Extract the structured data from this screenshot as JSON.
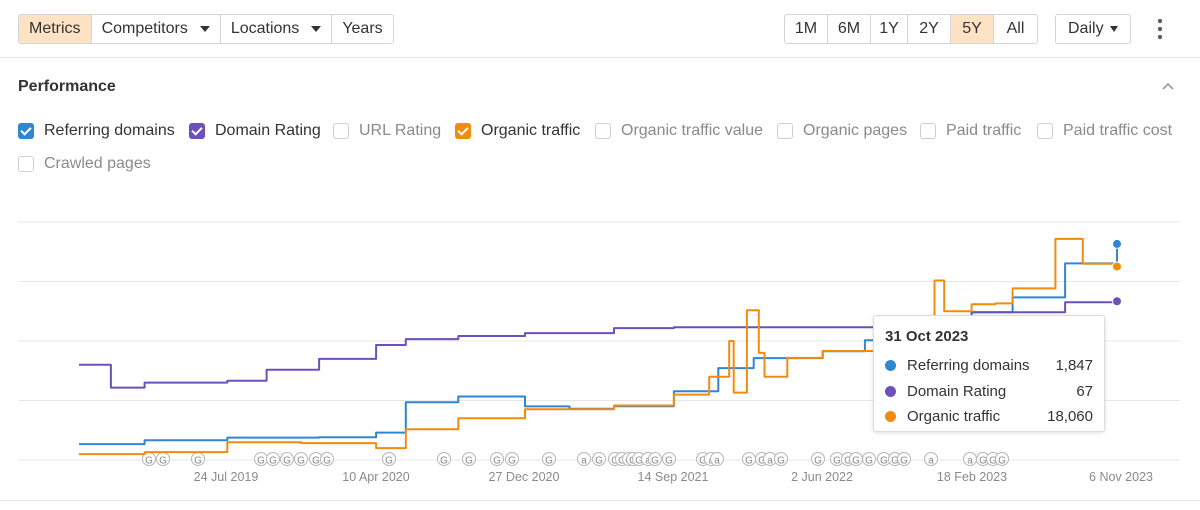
{
  "toolbar": {
    "tabs": [
      {
        "label": "Metrics",
        "active": true,
        "dropdown": false
      },
      {
        "label": "Competitors",
        "active": false,
        "dropdown": true
      },
      {
        "label": "Locations",
        "active": false,
        "dropdown": true
      },
      {
        "label": "Years",
        "active": false,
        "dropdown": false
      }
    ],
    "ranges": [
      {
        "label": "1M",
        "active": false
      },
      {
        "label": "6M",
        "active": false
      },
      {
        "label": "1Y",
        "active": false
      },
      {
        "label": "2Y",
        "active": false
      },
      {
        "label": "5Y",
        "active": true
      },
      {
        "label": "All",
        "active": false
      }
    ],
    "interval": "Daily",
    "more_icon": "kebab-menu-icon"
  },
  "panel": {
    "title": "Performance",
    "collapse_icon": "chevron-up-icon"
  },
  "legend": [
    {
      "label": "Referring domains",
      "checked": true,
      "color": "#2f86d4"
    },
    {
      "label": "Domain Rating",
      "checked": true,
      "color": "#6b51b9"
    },
    {
      "label": "URL Rating",
      "checked": false
    },
    {
      "label": "Organic traffic",
      "checked": true,
      "color": "#f28c0f"
    },
    {
      "label": "Organic traffic value",
      "checked": false
    },
    {
      "label": "Organic pages",
      "checked": false
    },
    {
      "label": "Paid traffic",
      "checked": false
    },
    {
      "label": "Paid traffic cost",
      "checked": false
    },
    {
      "label": "Crawled pages",
      "checked": false
    }
  ],
  "tooltip": {
    "date": "31 Oct 2023",
    "rows": [
      {
        "name": "Referring domains",
        "value": "1,847",
        "color": "#2f86d4"
      },
      {
        "name": "Domain Rating",
        "value": "67",
        "color": "#6b51b9"
      },
      {
        "name": "Organic traffic",
        "value": "18,060",
        "color": "#f28c0f"
      }
    ]
  },
  "chart_data": {
    "type": "line",
    "x_tick_labels": [
      "24 Jul 2019",
      "10 Apr 2020",
      "27 Dec 2020",
      "14 Sep 2021",
      "2 Jun 2022",
      "18 Feb 2023",
      "6 Nov 2023"
    ],
    "grid": true,
    "y_axis_labels_shown": false,
    "annotation_markers": [
      "G",
      "G",
      "G",
      "G",
      "G",
      "G",
      "G",
      "G",
      "G",
      "G",
      "G",
      "G",
      "G",
      "G",
      "G",
      "a",
      "G",
      "G",
      "G",
      "G",
      "G",
      "G",
      "a",
      "G",
      "G",
      "G",
      "a",
      "a",
      "G",
      "G",
      "a",
      "G",
      "G",
      "G",
      "G",
      "G",
      "G",
      "G",
      "G",
      "G",
      "a",
      "a",
      "G",
      "G",
      "G"
    ],
    "series": [
      {
        "name": "Referring domains",
        "color": "#2f86d4",
        "points": [
          [
            "2018-11-06",
            6.7
          ],
          [
            "2019-03-01",
            8.3
          ],
          [
            "2019-07-24",
            9.4
          ],
          [
            "2020-01-01",
            9.6
          ],
          [
            "2020-04-10",
            11.5
          ],
          [
            "2020-06-01",
            24.3
          ],
          [
            "2020-09-01",
            26.7
          ],
          [
            "2020-12-27",
            22.5
          ],
          [
            "2021-03-15",
            21.5
          ],
          [
            "2021-06-01",
            22.6
          ],
          [
            "2021-09-14",
            28.9
          ],
          [
            "2021-12-01",
            38.6
          ],
          [
            "2022-02-01",
            42.8
          ],
          [
            "2022-06-02",
            45.7
          ],
          [
            "2022-08-15",
            50.3
          ],
          [
            "2022-11-01",
            57.5
          ],
          [
            "2023-02-18",
            62.1
          ],
          [
            "2023-05-01",
            68.3
          ],
          [
            "2023-08-01",
            82.6
          ],
          [
            "2023-10-31",
            90.8
          ]
        ]
      },
      {
        "name": "Domain Rating",
        "color": "#6b51b9",
        "points": [
          [
            "2018-11-06",
            40.0
          ],
          [
            "2019-01-01",
            30.4
          ],
          [
            "2019-03-01",
            32.5
          ],
          [
            "2019-07-24",
            33.3
          ],
          [
            "2019-10-01",
            37.9
          ],
          [
            "2020-01-01",
            42.5
          ],
          [
            "2020-04-10",
            48.3
          ],
          [
            "2020-06-01",
            50.8
          ],
          [
            "2020-09-01",
            52.1
          ],
          [
            "2020-12-27",
            53.3
          ],
          [
            "2021-06-01",
            55.4
          ],
          [
            "2021-09-14",
            55.8
          ],
          [
            "2022-06-02",
            55.8
          ],
          [
            "2022-09-01",
            57.1
          ],
          [
            "2022-11-01",
            60.0
          ],
          [
            "2023-02-18",
            62.1
          ],
          [
            "2023-05-01",
            62.1
          ],
          [
            "2023-08-01",
            66.3
          ],
          [
            "2023-10-31",
            66.7
          ]
        ]
      },
      {
        "name": "Organic traffic",
        "color": "#f28c0f",
        "points": [
          [
            "2018-11-06",
            2.5
          ],
          [
            "2019-03-01",
            3.3
          ],
          [
            "2019-07-24",
            7.5
          ],
          [
            "2019-12-01",
            7.1
          ],
          [
            "2020-04-10",
            5.0
          ],
          [
            "2020-06-01",
            12.9
          ],
          [
            "2020-09-01",
            17.5
          ],
          [
            "2020-12-27",
            21.3
          ],
          [
            "2021-03-15",
            21.3
          ],
          [
            "2021-06-01",
            22.9
          ],
          [
            "2021-09-14",
            27.5
          ],
          [
            "2021-11-15",
            35.0
          ],
          [
            "2021-12-20",
            50.0
          ],
          [
            "2021-12-28",
            28.3
          ],
          [
            "2022-01-20",
            62.9
          ],
          [
            "2022-02-10",
            45.0
          ],
          [
            "2022-02-20",
            35.0
          ],
          [
            "2022-04-01",
            42.9
          ],
          [
            "2022-06-02",
            45.8
          ],
          [
            "2022-09-01",
            47.9
          ],
          [
            "2022-11-01",
            57.1
          ],
          [
            "2022-12-15",
            75.4
          ],
          [
            "2023-01-01",
            62.5
          ],
          [
            "2023-02-18",
            65.4
          ],
          [
            "2023-04-01",
            65.8
          ],
          [
            "2023-05-01",
            72.1
          ],
          [
            "2023-07-15",
            92.9
          ],
          [
            "2023-09-01",
            82.5
          ],
          [
            "2023-10-31",
            81.3
          ]
        ]
      }
    ]
  }
}
